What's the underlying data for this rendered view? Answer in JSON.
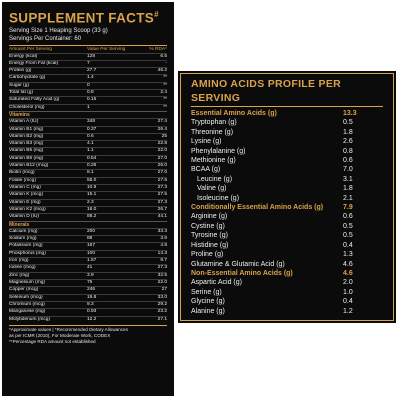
{
  "supplement": {
    "title": "SUPPLEMENT FACTS",
    "title_mark": "#",
    "serving_size": "Serving Size 1 Heaping Scoop (33 g)",
    "servings_per_container": "Servings Per Container: 60",
    "headers": {
      "name": "Amount Per Serving",
      "value": "Value Per Serving",
      "rda": "% RDA*"
    },
    "macros": [
      {
        "name": "Energy (kcal)",
        "value": "128",
        "rda": "6.5"
      },
      {
        "name": "Energy From Fat (kcal)",
        "value": "7",
        "rda": "-"
      },
      {
        "name": "Protein (g)",
        "value": "27.7",
        "rda": "46.2"
      },
      {
        "name": "Carbohydrate (g)",
        "value": "1.4",
        "rda": "**"
      },
      {
        "name": "Sugar (g)",
        "value": "0",
        "rda": "**"
      },
      {
        "name": "Total fat (g)",
        "value": "0.8",
        "rda": "2.4"
      },
      {
        "name": "Saturated Fatty Acid (g)",
        "value": "0.15",
        "rda": "**"
      },
      {
        "name": "Cholesterol (mg)",
        "value": "1",
        "rda": "**"
      }
    ],
    "vitamins_label": "Vitamins",
    "vitamins": [
      {
        "name": "Vitamin A (IU)",
        "value": "348",
        "rda": "27.4"
      },
      {
        "name": "Vitamin B1 (mg)",
        "value": "0.37",
        "rda": "26.4"
      },
      {
        "name": "Vitamin B2 (mg)",
        "value": "0.6",
        "rda": "25"
      },
      {
        "name": "Vitamin B3 (mg)",
        "value": "4.1",
        "rda": "22.8"
      },
      {
        "name": "Vitamin B5 (mg)",
        "value": "1.1",
        "rda": "22.0"
      },
      {
        "name": "Vitamin B6 (mg)",
        "value": "0.54",
        "rda": "27.0"
      },
      {
        "name": "Vitamin B12 (mcg)",
        "value": "0.26",
        "rda": "26.0"
      },
      {
        "name": "Biotin (mcg)",
        "value": "8.1",
        "rda": "27.0"
      },
      {
        "name": "Folate (mcg)",
        "value": "55.0",
        "rda": "27.5"
      },
      {
        "name": "Vitamin C (mg)",
        "value": "10.9",
        "rda": "27.3"
      },
      {
        "name": "Vitamin K (mcg)",
        "value": "15.1",
        "rda": "27.5"
      },
      {
        "name": "Vitamin E (mg)",
        "value": "2.3",
        "rda": "27.3"
      },
      {
        "name": "Vitamin K2 (mcg)",
        "value": "16.0",
        "rda": "26.7"
      },
      {
        "name": "Vitamin D (IU)",
        "value": "88.2",
        "rda": "44.1"
      }
    ],
    "minerals_label": "Minerals",
    "minerals": [
      {
        "name": "Calcium (mg)",
        "value": "200",
        "rda": "33.3"
      },
      {
        "name": "Sodium (mg)",
        "value": "88",
        "rda": "3.6"
      },
      {
        "name": "Potassium (mg)",
        "value": "167",
        "rda": "4.8"
      },
      {
        "name": "Phosphorus (mg)",
        "value": "100",
        "rda": "14.3"
      },
      {
        "name": "Iron (mg)",
        "value": "1.57",
        "rda": "9.7"
      },
      {
        "name": "Iodine (mcg)",
        "value": "41",
        "rda": "27.3"
      },
      {
        "name": "Zinc (mg)",
        "value": "3.9",
        "rda": "32.5"
      },
      {
        "name": "Magnesium (mg)",
        "value": "75",
        "rda": "22.0"
      },
      {
        "name": "Copper (mcg)",
        "value": "246",
        "rda": "27"
      },
      {
        "name": "Selenium (mcg)",
        "value": "19.8",
        "rda": "33.0"
      },
      {
        "name": "Chromium (mcg)",
        "value": "9.3",
        "rda": "29.2"
      },
      {
        "name": "Manganese (mg)",
        "value": "0.93",
        "rda": "23.2"
      },
      {
        "name": "Molybdenum (mcg)",
        "value": "12.2",
        "rda": "27.1"
      }
    ],
    "footnote1": "*Approximate values | *Recommended Dietary Allowances",
    "footnote2": "as per ICMR (2010), For Moderate Work, CODEX",
    "footnote3": "**Percentage RDA amount not established"
  },
  "amino": {
    "title": "AMINO ACIDS PROFILE PER SERVING",
    "rows": [
      {
        "name": "Essential Amino Acids (g)",
        "value": "13.3",
        "kind": "sec"
      },
      {
        "name": "Tryptophan (g)",
        "value": "0.5",
        "kind": ""
      },
      {
        "name": "Threonine (g)",
        "value": "1.8",
        "kind": ""
      },
      {
        "name": "Lysine (g)",
        "value": "2.6",
        "kind": ""
      },
      {
        "name": "Phenylalanine (g)",
        "value": "0.8",
        "kind": ""
      },
      {
        "name": "Methionine (g)",
        "value": "0.6",
        "kind": ""
      },
      {
        "name": "BCAA (g)",
        "value": "7.0",
        "kind": ""
      },
      {
        "name": "Leucine (g)",
        "value": "3.1",
        "kind": "ind"
      },
      {
        "name": "Valine (g)",
        "value": "1.8",
        "kind": "ind"
      },
      {
        "name": "Isoleucine (g)",
        "value": "2.1",
        "kind": "ind"
      },
      {
        "name": "Conditionally Essential Amino Acids (g)",
        "value": "7.9",
        "kind": "sec"
      },
      {
        "name": "Arginine (g)",
        "value": "0.6",
        "kind": ""
      },
      {
        "name": "Cystine (g)",
        "value": "0.5",
        "kind": ""
      },
      {
        "name": "Tyrosine (g)",
        "value": "0.5",
        "kind": ""
      },
      {
        "name": "Histidine (g)",
        "value": "0.4",
        "kind": ""
      },
      {
        "name": "Proline (g)",
        "value": "1.3",
        "kind": ""
      },
      {
        "name": "Glutamine & Glutamic Acid (g)",
        "value": "4.6",
        "kind": ""
      },
      {
        "name": "Non-Essential Amino Acids (g)",
        "value": "4.6",
        "kind": "sec"
      },
      {
        "name": "Aspartic Acid (g)",
        "value": "2.0",
        "kind": ""
      },
      {
        "name": "Serine (g)",
        "value": "1.0",
        "kind": ""
      },
      {
        "name": "Glycine (g)",
        "value": "0.4",
        "kind": ""
      },
      {
        "name": "Alanine (g)",
        "value": "1.2",
        "kind": ""
      }
    ]
  },
  "colors": {
    "accent": "#d9a24c",
    "panel": "#0b0b0b",
    "text": "#f0f0f0"
  }
}
